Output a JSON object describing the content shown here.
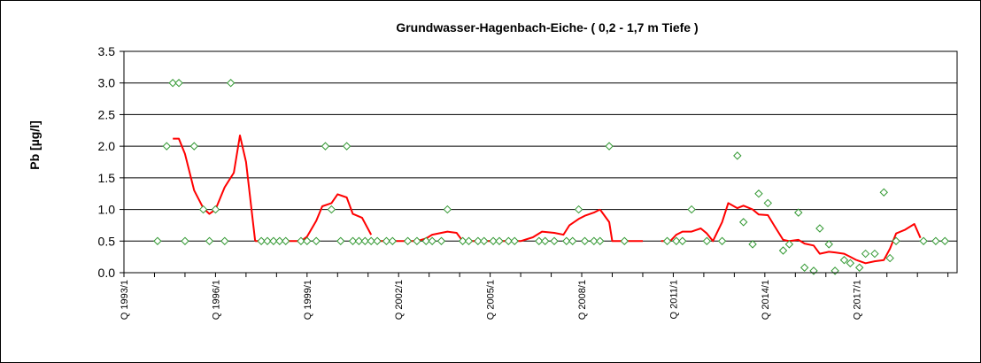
{
  "chart_data": {
    "type": "line",
    "title": "Grundwasser-Hagenbach-Eiche- ( 0,2 - 1,7 m  Tiefe )",
    "ylabel": "Pb [µg/l]",
    "xlabel": "",
    "ylim": [
      0,
      3.5
    ],
    "yticks": [
      0.0,
      0.5,
      1.0,
      1.5,
      2.0,
      2.5,
      3.0,
      3.5
    ],
    "ytick_labels": [
      "0.0",
      "0.5",
      "1.0",
      "1.5",
      "2.0",
      "2.5",
      "3.0",
      "3.5"
    ],
    "xlim": [
      1993.0,
      2020.3
    ],
    "xtick_labels": [
      {
        "x": 1993.0,
        "label": "Q 1993/1"
      },
      {
        "x": 1996.0,
        "label": "Q 1996/1"
      },
      {
        "x": 1999.0,
        "label": "Q 1999/1"
      },
      {
        "x": 2002.0,
        "label": "Q 2002/1"
      },
      {
        "x": 2005.0,
        "label": "Q 2005/1"
      },
      {
        "x": 2008.0,
        "label": "Q 2008/1"
      },
      {
        "x": 2011.0,
        "label": "Q 2011/1"
      },
      {
        "x": 2014.0,
        "label": "Q 2014/1"
      },
      {
        "x": 2017.0,
        "label": "Q 2017/1"
      }
    ],
    "grid": "horizontal",
    "colors": {
      "line": "#ff0000",
      "markers": "#339933",
      "grid": "#000000",
      "frame": "#000000"
    },
    "series": [
      {
        "style": "markers",
        "marker": "diamond",
        "x": [
          1994.1,
          1994.4,
          1994.6,
          1994.8,
          1995.0,
          1995.3,
          1995.6,
          1995.8,
          1996.0,
          1996.3,
          1996.5,
          1997.5,
          1997.7,
          1997.9,
          1998.1,
          1998.3,
          1998.8,
          1999.0,
          1999.3,
          1999.6,
          1999.8,
          2000.1,
          2000.3,
          2000.5,
          2000.7,
          2000.9,
          2001.1,
          2001.3,
          2001.6,
          2001.8,
          2002.3,
          2002.6,
          2002.9,
          2003.1,
          2003.4,
          2003.6,
          2004.1,
          2004.3,
          2004.6,
          2004.8,
          2005.1,
          2005.3,
          2005.6,
          2005.8,
          2006.6,
          2006.8,
          2007.1,
          2007.5,
          2007.7,
          2007.9,
          2008.1,
          2008.4,
          2008.6,
          2008.9,
          2009.4,
          2010.8,
          2011.1,
          2011.3,
          2011.6,
          2012.1,
          2012.6,
          2013.1,
          2013.3,
          2013.6,
          2013.8,
          2014.1,
          2014.6,
          2014.8,
          2015.1,
          2015.3,
          2015.6,
          2015.8,
          2016.1,
          2016.3,
          2016.6,
          2016.8,
          2017.1,
          2017.3,
          2017.6,
          2017.9,
          2018.1,
          2018.3,
          2019.2,
          2019.6,
          2019.9
        ],
        "y": [
          0.5,
          2.0,
          3.0,
          3.0,
          0.5,
          2.0,
          1.0,
          0.5,
          1.0,
          0.5,
          3.0,
          0.5,
          0.5,
          0.5,
          0.5,
          0.5,
          0.5,
          0.5,
          0.5,
          2.0,
          1.0,
          0.5,
          2.0,
          0.5,
          0.5,
          0.5,
          0.5,
          0.5,
          0.5,
          0.5,
          0.5,
          0.5,
          0.5,
          0.5,
          0.5,
          1.0,
          0.5,
          0.5,
          0.5,
          0.5,
          0.5,
          0.5,
          0.5,
          0.5,
          0.5,
          0.5,
          0.5,
          0.5,
          0.5,
          1.0,
          0.5,
          0.5,
          0.5,
          2.0,
          0.5,
          0.5,
          0.5,
          0.5,
          1.0,
          0.5,
          0.5,
          1.85,
          0.8,
          0.45,
          1.25,
          1.1,
          0.35,
          0.45,
          0.95,
          0.08,
          0.03,
          0.7,
          0.45,
          0.03,
          0.2,
          0.15,
          0.08,
          0.3,
          0.3,
          1.27,
          0.23,
          0.5,
          0.5,
          0.5,
          0.5
        ]
      },
      {
        "style": "line",
        "segments": [
          {
            "x": [
              1994.6,
              1994.8,
              1995.0,
              1995.3,
              1995.6,
              1995.8,
              1996.0,
              1996.3,
              1996.6,
              1996.8,
              1997.0,
              1997.3
            ],
            "y": [
              2.12,
              2.12,
              1.88,
              1.3,
              1.02,
              0.93,
              1.0,
              1.35,
              1.58,
              2.17,
              1.75,
              0.5
            ]
          },
          {
            "x": [
              1997.3,
              1998.8,
              1999.0,
              1999.3,
              1999.5,
              1999.8,
              2000.0,
              2000.3,
              2000.5,
              2000.8,
              2001.1
            ],
            "y": [
              0.5,
              0.5,
              0.57,
              0.82,
              1.05,
              1.1,
              1.24,
              1.19,
              0.93,
              0.87,
              0.6
            ]
          },
          {
            "x": [
              2001.1,
              2002.3,
              2002.6,
              2002.9,
              2003.1,
              2003.4,
              2003.6,
              2003.9,
              2004.1
            ],
            "y": [
              0.5,
              0.5,
              0.5,
              0.54,
              0.6,
              0.63,
              0.65,
              0.63,
              0.5
            ]
          },
          {
            "x": [
              2004.1,
              2006.0,
              2006.4,
              2006.7,
              2007.1,
              2007.4,
              2007.6,
              2007.9,
              2008.1,
              2008.4,
              2008.6
            ],
            "y": [
              0.5,
              0.5,
              0.56,
              0.65,
              0.63,
              0.6,
              0.75,
              0.85,
              0.9,
              0.95,
              1.0
            ]
          },
          {
            "x": [
              2008.6,
              2008.9,
              2009.0,
              2010.0
            ],
            "y": [
              1.0,
              0.8,
              0.5,
              0.5
            ]
          },
          {
            "x": [
              2010.6,
              2010.9,
              2011.1,
              2011.3,
              2011.6,
              2011.9,
              2012.1,
              2012.3,
              2012.6,
              2012.8,
              2013.1,
              2013.3,
              2013.6,
              2013.8,
              2014.1,
              2014.3,
              2014.6,
              2014.8,
              2015.1,
              2015.3,
              2015.6,
              2015.8,
              2016.1,
              2016.3,
              2016.6,
              2016.8,
              2017.0
            ],
            "y": [
              0.5,
              0.5,
              0.6,
              0.65,
              0.65,
              0.7,
              0.62,
              0.5,
              0.8,
              1.1,
              1.02,
              1.06,
              1.0,
              0.92,
              0.91,
              0.75,
              0.52,
              0.5,
              0.52,
              0.46,
              0.43,
              0.3,
              0.33,
              0.32,
              0.3,
              0.25,
              0.2
            ]
          },
          {
            "x": [
              2017.0,
              2017.3,
              2017.6,
              2017.9,
              2018.1,
              2018.3,
              2018.6,
              2018.9,
              2019.1
            ],
            "y": [
              0.2,
              0.15,
              0.18,
              0.2,
              0.38,
              0.62,
              0.68,
              0.77,
              0.55
            ]
          }
        ]
      }
    ]
  }
}
